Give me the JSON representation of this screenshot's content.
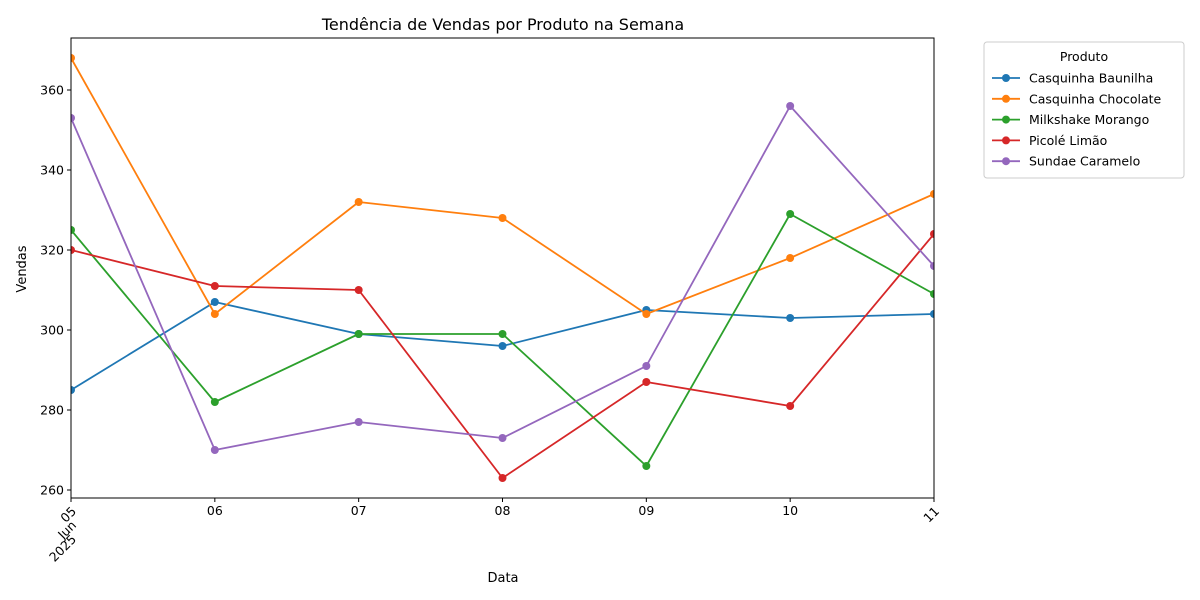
{
  "chart_data": {
    "type": "line",
    "title": "Tendência de Vendas por Produto na Semana",
    "xlabel": "Data",
    "ylabel": "Vendas",
    "x": [
      "2025-06-05",
      "2025-06-06",
      "2025-06-07",
      "2025-06-08",
      "2025-06-09",
      "2025-06-10",
      "2025-06-11"
    ],
    "x_tick_labels": [
      "05",
      "06",
      "07",
      "08",
      "09",
      "10",
      "11"
    ],
    "x_tick_sublabel": {
      "month": "Jun",
      "year": "2025"
    },
    "ylim": [
      258,
      373
    ],
    "y_ticks": [
      260,
      280,
      300,
      320,
      340,
      360
    ],
    "grid": false,
    "legend": {
      "title": "Produto",
      "placement": "outside-top-right"
    },
    "series": [
      {
        "name": "Casquinha Baunilha",
        "color": "#1f77b4",
        "values": [
          285,
          307,
          299,
          296,
          305,
          303,
          304
        ]
      },
      {
        "name": "Casquinha Chocolate",
        "color": "#ff7f0e",
        "values": [
          368,
          304,
          332,
          328,
          304,
          318,
          334
        ]
      },
      {
        "name": "Milkshake Morango",
        "color": "#2ca02c",
        "values": [
          325,
          282,
          299,
          299,
          266,
          329,
          309
        ]
      },
      {
        "name": "Picolé Limão",
        "color": "#d62728",
        "values": [
          320,
          311,
          310,
          263,
          287,
          281,
          324
        ]
      },
      {
        "name": "Sundae Caramelo",
        "color": "#9467bd",
        "values": [
          353,
          270,
          277,
          273,
          291,
          356,
          316
        ]
      }
    ]
  }
}
